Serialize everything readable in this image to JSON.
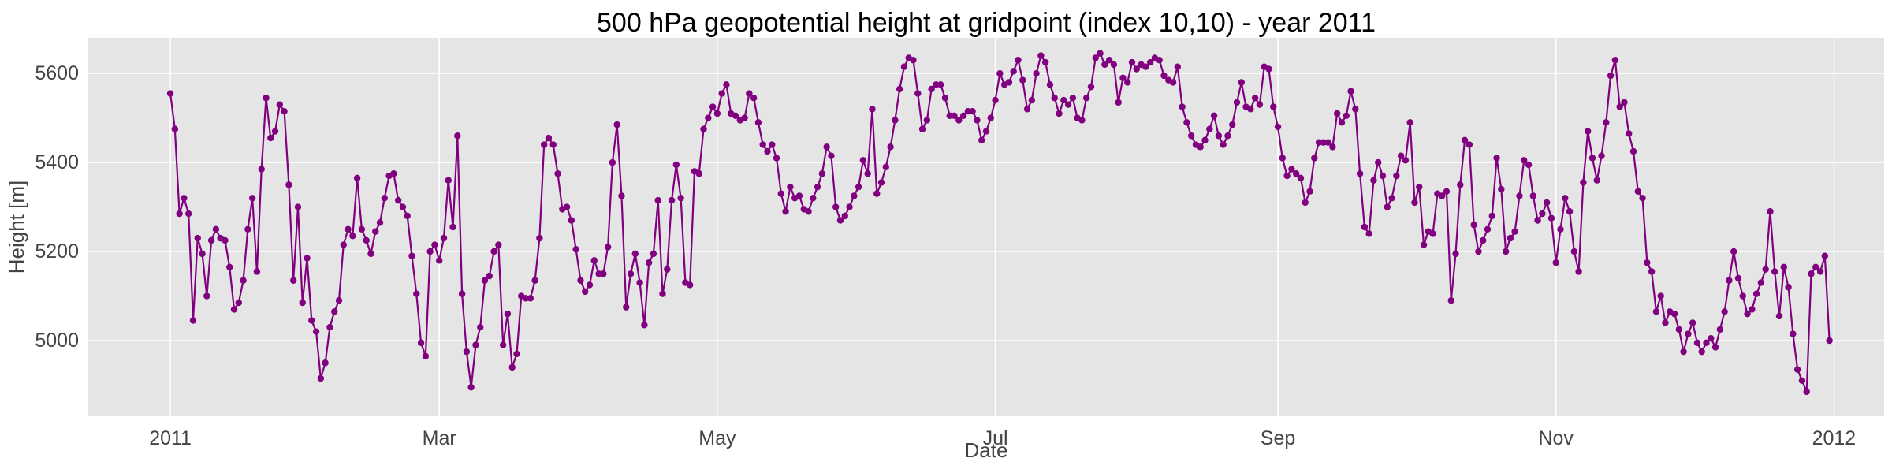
{
  "chart_data": {
    "type": "line",
    "title": "500 hPa geopotential height at gridpoint (index 10,10) - year 2011",
    "xlabel": "Date",
    "ylabel": "Height [m]",
    "x_start": "2011-01-01",
    "x_step_days": 1,
    "xlim": [
      "2010-12-14",
      "2012-01-12"
    ],
    "ylim": [
      4830,
      5680
    ],
    "x_ticks": [
      {
        "date": "2011-01-01",
        "label": "2011"
      },
      {
        "date": "2011-03-01",
        "label": "Mar"
      },
      {
        "date": "2011-05-01",
        "label": "May"
      },
      {
        "date": "2011-07-01",
        "label": "Jul"
      },
      {
        "date": "2011-09-01",
        "label": "Sep"
      },
      {
        "date": "2011-11-01",
        "label": "Nov"
      },
      {
        "date": "2012-01-01",
        "label": "2012"
      }
    ],
    "y_ticks": [
      5000,
      5200,
      5400,
      5600
    ],
    "grid": true,
    "series": [
      {
        "color": "#800080",
        "marker": "circle",
        "values": [
          5555,
          5475,
          5285,
          5320,
          5285,
          5045,
          5230,
          5195,
          5100,
          5225,
          5250,
          5230,
          5225,
          5165,
          5070,
          5085,
          5135,
          5250,
          5320,
          5155,
          5385,
          5545,
          5455,
          5470,
          5530,
          5515,
          5350,
          5135,
          5300,
          5085,
          5185,
          5045,
          5020,
          4915,
          4950,
          5030,
          5065,
          5090,
          5215,
          5250,
          5235,
          5365,
          5250,
          5225,
          5195,
          5245,
          5265,
          5320,
          5370,
          5375,
          5315,
          5300,
          5280,
          5190,
          5105,
          4995,
          4965,
          5200,
          5215,
          5180,
          5230,
          5360,
          5255,
          5460,
          5105,
          4975,
          4895,
          4990,
          5030,
          5135,
          5145,
          5200,
          5215,
          4990,
          5060,
          4940,
          4970,
          5100,
          5095,
          5095,
          5135,
          5230,
          5440,
          5455,
          5440,
          5375,
          5295,
          5300,
          5270,
          5205,
          5135,
          5110,
          5125,
          5180,
          5150,
          5150,
          5210,
          5400,
          5485,
          5325,
          5075,
          5150,
          5195,
          5130,
          5035,
          5175,
          5195,
          5315,
          5105,
          5160,
          5315,
          5395,
          5320,
          5130,
          5125,
          5380,
          5375,
          5475,
          5500,
          5525,
          5510,
          5555,
          5575,
          5510,
          5505,
          5495,
          5500,
          5555,
          5545,
          5490,
          5440,
          5425,
          5440,
          5410,
          5330,
          5290,
          5345,
          5320,
          5325,
          5295,
          5290,
          5320,
          5345,
          5375,
          5435,
          5415,
          5300,
          5270,
          5280,
          5300,
          5325,
          5345,
          5405,
          5375,
          5520,
          5330,
          5355,
          5390,
          5435,
          5495,
          5565,
          5615,
          5635,
          5630,
          5555,
          5475,
          5495,
          5565,
          5575,
          5575,
          5545,
          5505,
          5505,
          5495,
          5505,
          5515,
          5515,
          5495,
          5450,
          5470,
          5500,
          5540,
          5600,
          5575,
          5580,
          5605,
          5630,
          5585,
          5520,
          5540,
          5600,
          5640,
          5625,
          5575,
          5545,
          5510,
          5540,
          5530,
          5545,
          5500,
          5495,
          5545,
          5570,
          5635,
          5645,
          5620,
          5630,
          5620,
          5535,
          5590,
          5580,
          5625,
          5610,
          5620,
          5615,
          5625,
          5635,
          5630,
          5595,
          5585,
          5580,
          5615,
          5525,
          5490,
          5460,
          5440,
          5435,
          5450,
          5475,
          5505,
          5460,
          5440,
          5460,
          5485,
          5535,
          5580,
          5525,
          5520,
          5545,
          5530,
          5615,
          5610,
          5525,
          5480,
          5410,
          5370,
          5385,
          5375,
          5365,
          5310,
          5335,
          5410,
          5445,
          5445,
          5445,
          5435,
          5510,
          5490,
          5505,
          5560,
          5520,
          5375,
          5255,
          5240,
          5360,
          5400,
          5370,
          5300,
          5320,
          5370,
          5415,
          5405,
          5490,
          5310,
          5345,
          5215,
          5245,
          5240,
          5330,
          5325,
          5335,
          5090,
          5195,
          5350,
          5450,
          5440,
          5260,
          5200,
          5225,
          5250,
          5280,
          5410,
          5340,
          5200,
          5230,
          5245,
          5325,
          5405,
          5395,
          5325,
          5270,
          5285,
          5310,
          5275,
          5175,
          5250,
          5320,
          5290,
          5200,
          5155,
          5355,
          5470,
          5410,
          5360,
          5415,
          5490,
          5595,
          5630,
          5525,
          5535,
          5465,
          5425,
          5335,
          5320,
          5175,
          5155,
          5065,
          5100,
          5040,
          5065,
          5060,
          5025,
          4975,
          5015,
          5040,
          4995,
          4975,
          4995,
          5005,
          4985,
          5025,
          5065,
          5135,
          5200,
          5140,
          5100,
          5060,
          5070,
          5105,
          5130,
          5160,
          5290,
          5155,
          5055,
          5165,
          5120,
          5015,
          4935,
          4910,
          4885,
          5150,
          5165,
          5155,
          5190,
          5000
        ]
      }
    ]
  }
}
